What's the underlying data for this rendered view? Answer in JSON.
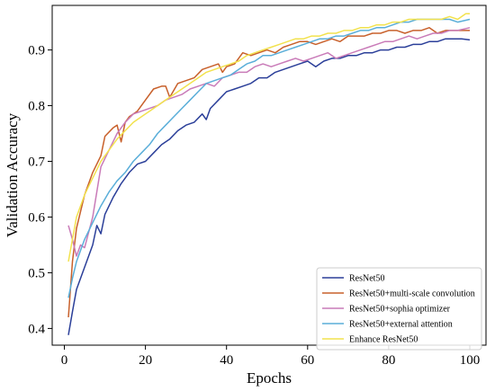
{
  "chart_data": {
    "type": "line",
    "title": "",
    "xlabel": "Epochs",
    "ylabel": "Validation Accuracy",
    "xlim": [
      -3,
      104
    ],
    "ylim": [
      0.37,
      0.98
    ],
    "xticks": [
      0,
      20,
      40,
      60,
      80,
      100
    ],
    "yticks": [
      0.4,
      0.5,
      0.6,
      0.7,
      0.8,
      0.9
    ],
    "xtick_labels": [
      "0",
      "20",
      "40",
      "60",
      "80",
      "100"
    ],
    "ytick_labels": [
      "0.4",
      "0.5",
      "0.6",
      "0.7",
      "0.8",
      "0.9"
    ],
    "grid": false,
    "legend": "bottom-right",
    "series": [
      {
        "name": "ResNet50",
        "color": "#2b3f99",
        "points": [
          [
            1,
            0.388
          ],
          [
            2,
            0.43
          ],
          [
            3,
            0.47
          ],
          [
            5,
            0.51
          ],
          [
            7,
            0.55
          ],
          [
            8,
            0.585
          ],
          [
            9,
            0.57
          ],
          [
            10,
            0.605
          ],
          [
            12,
            0.635
          ],
          [
            14,
            0.66
          ],
          [
            16,
            0.68
          ],
          [
            18,
            0.695
          ],
          [
            20,
            0.7
          ],
          [
            22,
            0.715
          ],
          [
            24,
            0.73
          ],
          [
            26,
            0.74
          ],
          [
            28,
            0.755
          ],
          [
            30,
            0.765
          ],
          [
            32,
            0.77
          ],
          [
            34,
            0.785
          ],
          [
            35,
            0.775
          ],
          [
            36,
            0.795
          ],
          [
            38,
            0.81
          ],
          [
            40,
            0.825
          ],
          [
            42,
            0.83
          ],
          [
            44,
            0.835
          ],
          [
            46,
            0.84
          ],
          [
            48,
            0.85
          ],
          [
            50,
            0.85
          ],
          [
            52,
            0.86
          ],
          [
            54,
            0.865
          ],
          [
            56,
            0.87
          ],
          [
            58,
            0.875
          ],
          [
            60,
            0.88
          ],
          [
            62,
            0.87
          ],
          [
            64,
            0.88
          ],
          [
            66,
            0.885
          ],
          [
            68,
            0.885
          ],
          [
            70,
            0.89
          ],
          [
            72,
            0.89
          ],
          [
            74,
            0.895
          ],
          [
            76,
            0.895
          ],
          [
            78,
            0.9
          ],
          [
            80,
            0.9
          ],
          [
            82,
            0.905
          ],
          [
            84,
            0.905
          ],
          [
            86,
            0.91
          ],
          [
            88,
            0.91
          ],
          [
            90,
            0.915
          ],
          [
            92,
            0.915
          ],
          [
            94,
            0.92
          ],
          [
            96,
            0.92
          ],
          [
            98,
            0.92
          ],
          [
            100,
            0.918
          ]
        ]
      },
      {
        "name": "ResNet50+multi-scale convolution",
        "color": "#c8602b",
        "points": [
          [
            1,
            0.42
          ],
          [
            2,
            0.52
          ],
          [
            3,
            0.58
          ],
          [
            5,
            0.64
          ],
          [
            7,
            0.68
          ],
          [
            9,
            0.71
          ],
          [
            10,
            0.745
          ],
          [
            12,
            0.76
          ],
          [
            13,
            0.765
          ],
          [
            14,
            0.735
          ],
          [
            15,
            0.77
          ],
          [
            16,
            0.78
          ],
          [
            18,
            0.79
          ],
          [
            20,
            0.81
          ],
          [
            22,
            0.83
          ],
          [
            24,
            0.835
          ],
          [
            25,
            0.835
          ],
          [
            26,
            0.815
          ],
          [
            28,
            0.84
          ],
          [
            30,
            0.845
          ],
          [
            32,
            0.85
          ],
          [
            34,
            0.865
          ],
          [
            36,
            0.87
          ],
          [
            38,
            0.875
          ],
          [
            39,
            0.86
          ],
          [
            40,
            0.87
          ],
          [
            42,
            0.875
          ],
          [
            44,
            0.895
          ],
          [
            46,
            0.89
          ],
          [
            48,
            0.895
          ],
          [
            50,
            0.9
          ],
          [
            52,
            0.895
          ],
          [
            54,
            0.905
          ],
          [
            56,
            0.91
          ],
          [
            58,
            0.915
          ],
          [
            60,
            0.915
          ],
          [
            62,
            0.91
          ],
          [
            64,
            0.915
          ],
          [
            66,
            0.92
          ],
          [
            68,
            0.915
          ],
          [
            70,
            0.925
          ],
          [
            72,
            0.925
          ],
          [
            74,
            0.925
          ],
          [
            76,
            0.93
          ],
          [
            78,
            0.93
          ],
          [
            80,
            0.935
          ],
          [
            82,
            0.935
          ],
          [
            84,
            0.93
          ],
          [
            86,
            0.935
          ],
          [
            88,
            0.935
          ],
          [
            90,
            0.94
          ],
          [
            92,
            0.93
          ],
          [
            94,
            0.935
          ],
          [
            96,
            0.935
          ],
          [
            98,
            0.935
          ],
          [
            100,
            0.935
          ]
        ]
      },
      {
        "name": "ResNet50+sophia optimizer",
        "color": "#c97bb8",
        "points": [
          [
            1,
            0.585
          ],
          [
            2,
            0.56
          ],
          [
            3,
            0.53
          ],
          [
            4,
            0.55
          ],
          [
            5,
            0.545
          ],
          [
            7,
            0.6
          ],
          [
            9,
            0.69
          ],
          [
            11,
            0.72
          ],
          [
            13,
            0.75
          ],
          [
            15,
            0.77
          ],
          [
            17,
            0.785
          ],
          [
            19,
            0.79
          ],
          [
            21,
            0.795
          ],
          [
            23,
            0.8
          ],
          [
            25,
            0.81
          ],
          [
            27,
            0.815
          ],
          [
            29,
            0.82
          ],
          [
            31,
            0.83
          ],
          [
            33,
            0.835
          ],
          [
            35,
            0.84
          ],
          [
            37,
            0.835
          ],
          [
            39,
            0.85
          ],
          [
            41,
            0.855
          ],
          [
            43,
            0.86
          ],
          [
            45,
            0.86
          ],
          [
            47,
            0.87
          ],
          [
            49,
            0.875
          ],
          [
            51,
            0.87
          ],
          [
            53,
            0.875
          ],
          [
            55,
            0.88
          ],
          [
            57,
            0.885
          ],
          [
            59,
            0.88
          ],
          [
            61,
            0.885
          ],
          [
            63,
            0.89
          ],
          [
            65,
            0.895
          ],
          [
            67,
            0.885
          ],
          [
            69,
            0.89
          ],
          [
            71,
            0.895
          ],
          [
            73,
            0.9
          ],
          [
            75,
            0.905
          ],
          [
            77,
            0.91
          ],
          [
            79,
            0.915
          ],
          [
            81,
            0.915
          ],
          [
            83,
            0.92
          ],
          [
            85,
            0.925
          ],
          [
            87,
            0.92
          ],
          [
            89,
            0.925
          ],
          [
            91,
            0.93
          ],
          [
            93,
            0.93
          ],
          [
            95,
            0.935
          ],
          [
            97,
            0.935
          ],
          [
            100,
            0.94
          ]
        ]
      },
      {
        "name": "ResNet50+external attention",
        "color": "#5aaed9",
        "points": [
          [
            1,
            0.455
          ],
          [
            2,
            0.49
          ],
          [
            3,
            0.52
          ],
          [
            5,
            0.56
          ],
          [
            7,
            0.59
          ],
          [
            9,
            0.62
          ],
          [
            11,
            0.645
          ],
          [
            13,
            0.665
          ],
          [
            15,
            0.68
          ],
          [
            17,
            0.7
          ],
          [
            19,
            0.715
          ],
          [
            21,
            0.73
          ],
          [
            23,
            0.75
          ],
          [
            25,
            0.765
          ],
          [
            27,
            0.78
          ],
          [
            29,
            0.795
          ],
          [
            31,
            0.81
          ],
          [
            33,
            0.825
          ],
          [
            35,
            0.84
          ],
          [
            37,
            0.845
          ],
          [
            39,
            0.85
          ],
          [
            41,
            0.855
          ],
          [
            43,
            0.865
          ],
          [
            45,
            0.875
          ],
          [
            47,
            0.88
          ],
          [
            49,
            0.89
          ],
          [
            51,
            0.89
          ],
          [
            53,
            0.895
          ],
          [
            55,
            0.9
          ],
          [
            57,
            0.905
          ],
          [
            59,
            0.91
          ],
          [
            61,
            0.915
          ],
          [
            63,
            0.92
          ],
          [
            65,
            0.92
          ],
          [
            67,
            0.925
          ],
          [
            69,
            0.925
          ],
          [
            71,
            0.93
          ],
          [
            73,
            0.935
          ],
          [
            75,
            0.935
          ],
          [
            77,
            0.94
          ],
          [
            79,
            0.94
          ],
          [
            81,
            0.945
          ],
          [
            83,
            0.95
          ],
          [
            85,
            0.95
          ],
          [
            87,
            0.955
          ],
          [
            89,
            0.955
          ],
          [
            91,
            0.955
          ],
          [
            93,
            0.955
          ],
          [
            95,
            0.955
          ],
          [
            97,
            0.95
          ],
          [
            100,
            0.955
          ]
        ]
      },
      {
        "name": "Enhance ResNet50",
        "color": "#f2e24e",
        "points": [
          [
            1,
            0.52
          ],
          [
            2,
            0.56
          ],
          [
            3,
            0.6
          ],
          [
            5,
            0.64
          ],
          [
            7,
            0.67
          ],
          [
            9,
            0.7
          ],
          [
            11,
            0.72
          ],
          [
            13,
            0.74
          ],
          [
            15,
            0.755
          ],
          [
            17,
            0.77
          ],
          [
            19,
            0.78
          ],
          [
            21,
            0.79
          ],
          [
            23,
            0.8
          ],
          [
            25,
            0.81
          ],
          [
            27,
            0.82
          ],
          [
            29,
            0.83
          ],
          [
            31,
            0.84
          ],
          [
            33,
            0.85
          ],
          [
            35,
            0.86
          ],
          [
            37,
            0.865
          ],
          [
            39,
            0.87
          ],
          [
            41,
            0.875
          ],
          [
            43,
            0.88
          ],
          [
            45,
            0.89
          ],
          [
            47,
            0.895
          ],
          [
            49,
            0.9
          ],
          [
            51,
            0.905
          ],
          [
            53,
            0.91
          ],
          [
            55,
            0.915
          ],
          [
            57,
            0.92
          ],
          [
            59,
            0.92
          ],
          [
            61,
            0.925
          ],
          [
            63,
            0.925
          ],
          [
            65,
            0.93
          ],
          [
            67,
            0.93
          ],
          [
            69,
            0.935
          ],
          [
            71,
            0.935
          ],
          [
            73,
            0.94
          ],
          [
            75,
            0.94
          ],
          [
            77,
            0.945
          ],
          [
            79,
            0.945
          ],
          [
            81,
            0.95
          ],
          [
            83,
            0.95
          ],
          [
            85,
            0.955
          ],
          [
            87,
            0.955
          ],
          [
            89,
            0.955
          ],
          [
            91,
            0.955
          ],
          [
            93,
            0.955
          ],
          [
            95,
            0.96
          ],
          [
            97,
            0.955
          ],
          [
            99,
            0.965
          ],
          [
            100,
            0.965
          ]
        ]
      }
    ]
  }
}
